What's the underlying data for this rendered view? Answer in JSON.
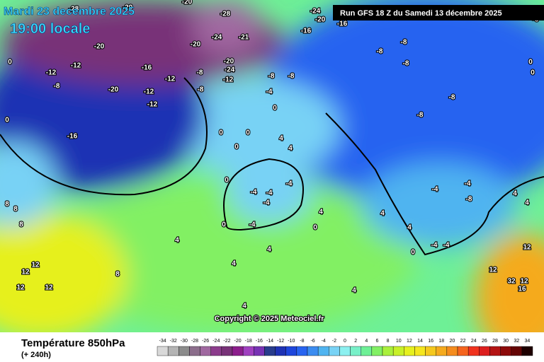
{
  "header": {
    "date": "Mardi 23 decembre 2025",
    "time": "19:00 locale",
    "run": "Run GFS 18 Z du Samedi 13 décembre 2025"
  },
  "copyright": "Copyright © 2025 Meteociel.fr",
  "legend": {
    "title": "Température 850hPa",
    "lead": "(+ 240h)",
    "values": [
      -34,
      -32,
      -30,
      -28,
      -26,
      -24,
      -22,
      -20,
      -18,
      -16,
      -14,
      -12,
      -10,
      -8,
      -6,
      -4,
      -2,
      0,
      2,
      4,
      6,
      8,
      10,
      12,
      14,
      16,
      18,
      20,
      22,
      24,
      26,
      28,
      30,
      32,
      34
    ],
    "colors": [
      "#d9d9d9",
      "#b4b4b4",
      "#8c8c8c",
      "#8c6e8c",
      "#a068a0",
      "#8c3c8c",
      "#783278",
      "#8c1e8c",
      "#a040c0",
      "#7832b4",
      "#283c8c",
      "#1e32b4",
      "#1e46dc",
      "#2864f0",
      "#3c8cf0",
      "#50b4f0",
      "#78d2f5",
      "#8cf0f0",
      "#78f0c8",
      "#6ef096",
      "#82f064",
      "#aaf03c",
      "#c8f028",
      "#e6f01e",
      "#f5e61e",
      "#f5c81e",
      "#f5aa1e",
      "#f58c1e",
      "#f5641e",
      "#f0321e",
      "#dc1e1e",
      "#b41414",
      "#8c0a0a",
      "#640505",
      "#1e0000"
    ]
  },
  "contour_labels": [
    -28,
    -20,
    -20,
    -28,
    -24,
    -21,
    -20,
    -24,
    -20,
    -20,
    -12,
    -12,
    -8,
    -16,
    -20,
    -12,
    -12,
    -12,
    -16,
    0,
    0,
    -8,
    -8,
    -12,
    -24,
    -20,
    -16,
    -16,
    -8,
    -8,
    -8,
    -8,
    -8,
    -8,
    -8,
    -4,
    0,
    0,
    0,
    0,
    4,
    4,
    0,
    -4,
    -4,
    -4,
    -4,
    -4,
    0,
    4,
    8,
    8,
    8,
    12,
    12,
    12,
    12,
    8,
    4,
    4,
    4,
    4,
    0,
    -4,
    -4,
    -8,
    -4,
    -4,
    4,
    4,
    12,
    12,
    32,
    16,
    12,
    0,
    4,
    4,
    4,
    -16,
    0,
    0,
    -8
  ]
}
